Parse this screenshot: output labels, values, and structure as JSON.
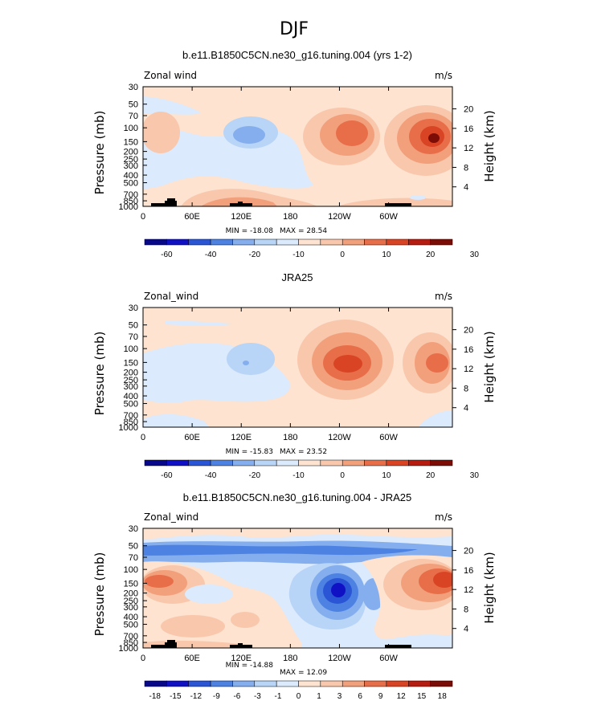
{
  "figure_title": "DJF",
  "colors": {
    "main9": [
      "#08088a",
      "#1010c4",
      "#2a56d6",
      "#4e82e2",
      "#84aeee",
      "#b8d4f6",
      "#dbeafc",
      "#fde3d0",
      "#f9c7ac",
      "#f2a07c",
      "#e86e4a",
      "#d94424",
      "#b61c10",
      "#7c0c06"
    ],
    "diff": [
      "#08088a",
      "#1010c4",
      "#2a56d6",
      "#4e82e2",
      "#84aeee",
      "#b8d4f6",
      "#dbeafc",
      "#fde3d0",
      "#f9c7ac",
      "#f2a07c",
      "#e86e4a",
      "#d94424",
      "#b61c10",
      "#7c0c06"
    ]
  },
  "chart_data": [
    {
      "type": "heatmap",
      "title": "b.e11.B1850C5CN.ne30_g16.tuning.004 (yrs 1-2)",
      "left_label": "Zonal wind",
      "units": "m/s",
      "xlabel": "",
      "ylabel": "Pressure (mb)",
      "ylabel_right": "Height (km)",
      "x_ticks": [
        "0",
        "60E",
        "120E",
        "180",
        "120W",
        "60W"
      ],
      "y_ticks": [
        "30",
        "50",
        "70",
        "100",
        "150",
        "200",
        "250",
        "300",
        "400",
        "500",
        "700",
        "850",
        "1000"
      ],
      "y_ticks_right": [
        "20",
        "16",
        "12",
        "8",
        "4"
      ],
      "min_label": "MIN = -18.08",
      "max_label": "MAX = 28.54",
      "colorbar_labels": [
        "-60",
        "-40",
        "-20",
        "-10",
        "0",
        "10",
        "20",
        "30"
      ],
      "features": [
        {
          "lon": 45,
          "p": 150,
          "value": 5
        },
        {
          "lon": 130,
          "p": 150,
          "value": -12
        },
        {
          "lon": 225,
          "p": 140,
          "value": 22
        },
        {
          "lon": 320,
          "p": 150,
          "value": 28.54
        },
        {
          "lon": 110,
          "p": 800,
          "value": 6
        },
        {
          "lon": 300,
          "p": 1000,
          "value": 4
        }
      ]
    },
    {
      "type": "heatmap",
      "title": "JRA25",
      "left_label": "Zonal_wind",
      "units": "m/s",
      "xlabel": "",
      "ylabel": "Pressure (mb)",
      "ylabel_right": "Height (km)",
      "x_ticks": [
        "0",
        "60E",
        "120E",
        "180",
        "120W",
        "60W"
      ],
      "y_ticks": [
        "30",
        "50",
        "70",
        "100",
        "150",
        "200",
        "250",
        "300",
        "400",
        "500",
        "700",
        "850",
        "1000"
      ],
      "y_ticks_right": [
        "20",
        "16",
        "12",
        "8",
        "4"
      ],
      "min_label": "MIN = -15.83",
      "max_label": "MAX = 23.52",
      "colorbar_labels": [
        "-60",
        "-40",
        "-20",
        "-10",
        "0",
        "10",
        "20",
        "30"
      ],
      "features": [
        {
          "lon": 130,
          "p": 150,
          "value": -12
        },
        {
          "lon": 240,
          "p": 150,
          "value": 23.52
        },
        {
          "lon": 335,
          "p": 150,
          "value": 18
        }
      ]
    },
    {
      "type": "heatmap",
      "title": "b.e11.B1850C5CN.ne30_g16.tuning.004 - JRA25",
      "left_label": "Zonal_wind",
      "units": "m/s",
      "xlabel": "",
      "ylabel": "Pressure (mb)",
      "ylabel_right": "Height (km)",
      "x_ticks": [
        "0",
        "60E",
        "120E",
        "180",
        "120W",
        "60W"
      ],
      "y_ticks": [
        "30",
        "50",
        "70",
        "100",
        "150",
        "200",
        "250",
        "300",
        "400",
        "500",
        "700",
        "850",
        "1000"
      ],
      "y_ticks_right": [
        "20",
        "16",
        "12",
        "8",
        "4"
      ],
      "min_label": "MIN = -14.88",
      "max_label": "MAX = 12.09",
      "colorbar_labels": [
        "-18",
        "-15",
        "-12",
        "-9",
        "-6",
        "-3",
        "-1",
        "0",
        "1",
        "3",
        "6",
        "9",
        "12",
        "15",
        "18"
      ],
      "features": [
        {
          "lon": 225,
          "p": 200,
          "value": -14.88
        },
        {
          "lon": 340,
          "p": 120,
          "value": 12.09
        },
        {
          "lon": 30,
          "p": 150,
          "value": 6
        },
        {
          "lon": 150,
          "p": 50,
          "value": -8
        }
      ]
    }
  ]
}
